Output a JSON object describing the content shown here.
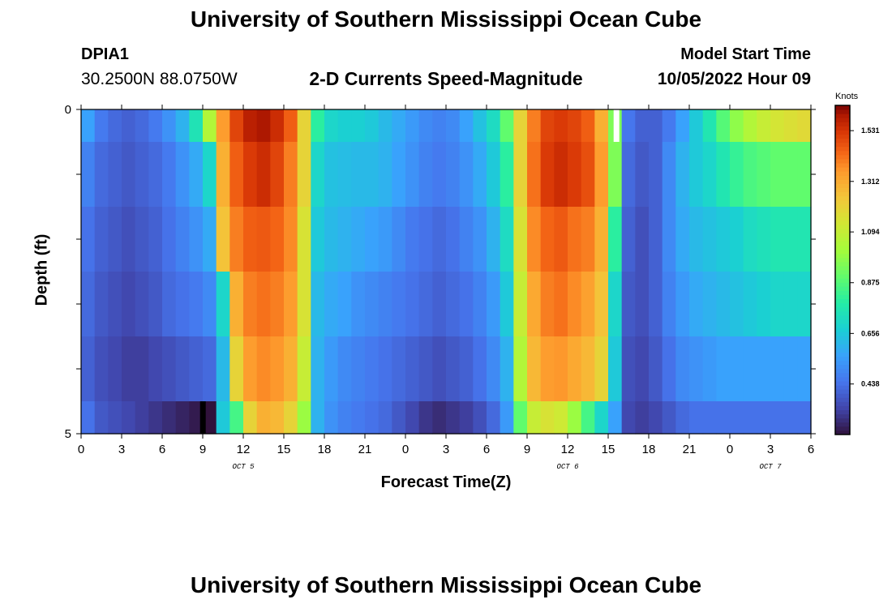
{
  "header": {
    "title": "University of Southern Mississippi Ocean Cube",
    "station": "DPIA1",
    "coordinates": "30.2500N  88.0750W",
    "model_label": "Model Start Time",
    "model_time": "10/05/2022 Hour 09"
  },
  "footer": {
    "title": "University of Southern Mississippi Ocean Cube"
  },
  "chart_data": {
    "type": "heatmap",
    "title": "2-D Currents Speed-Magnitude",
    "xlabel": "Forecast Time(Z)",
    "ylabel": "Depth (ft)",
    "colorbar_label": "Knots",
    "colorbar_ticks": [
      "1.531",
      "1.312",
      "1.094",
      "0.875",
      "0.656",
      "0.438"
    ],
    "color_range": [
      0.22,
      1.64
    ],
    "x_range_hours": [
      0,
      54
    ],
    "x_tick_labels": [
      "0",
      "3",
      "6",
      "9",
      "12",
      "15",
      "18",
      "21",
      "0",
      "3",
      "6",
      "9",
      "12",
      "15",
      "18",
      "21",
      "0",
      "3",
      "6"
    ],
    "day_labels": [
      {
        "text": "OCT 5",
        "hour": 12
      },
      {
        "text": "OCT 6",
        "hour": 36
      },
      {
        "text": "OCT 7",
        "hour": 51
      }
    ],
    "y_tick_labels": [
      {
        "text": "0",
        "depth": 0
      },
      {
        "text": "5",
        "depth": 5
      }
    ],
    "y_range_ft": [
      0,
      5
    ],
    "depths_ft": [
      0,
      1,
      2,
      3,
      4,
      5
    ],
    "hours": [
      0,
      1,
      2,
      3,
      4,
      5,
      6,
      7,
      8,
      9,
      10,
      11,
      12,
      13,
      14,
      15,
      16,
      17,
      18,
      19,
      20,
      21,
      22,
      23,
      24,
      25,
      26,
      27,
      28,
      29,
      30,
      31,
      32,
      33,
      34,
      35,
      36,
      37,
      38,
      39,
      40,
      41,
      42,
      43,
      44,
      45,
      46,
      47,
      48,
      49,
      50,
      51,
      52,
      53
    ],
    "speed_knots": [
      [
        0.56,
        0.46,
        0.42,
        0.4,
        0.42,
        0.46,
        0.52,
        0.6,
        0.75,
        1.05,
        1.35,
        1.5,
        1.58,
        1.6,
        1.55,
        1.45,
        1.2,
        0.8,
        0.7,
        0.68,
        0.68,
        0.66,
        0.62,
        0.58,
        0.54,
        0.5,
        0.48,
        0.5,
        0.56,
        0.64,
        0.72,
        0.9,
        1.2,
        1.4,
        1.5,
        1.52,
        1.5,
        1.45,
        1.3,
        0.95,
        0.45,
        0.4,
        0.4,
        0.46,
        0.56,
        0.66,
        0.76,
        0.88,
        0.98,
        1.05,
        1.1,
        1.14,
        1.16,
        1.18
      ],
      [
        0.48,
        0.42,
        0.4,
        0.38,
        0.4,
        0.42,
        0.46,
        0.52,
        0.58,
        0.7,
        1.3,
        1.45,
        1.52,
        1.55,
        1.5,
        1.4,
        1.2,
        0.7,
        0.64,
        0.63,
        0.62,
        0.62,
        0.6,
        0.56,
        0.52,
        0.48,
        0.46,
        0.48,
        0.52,
        0.58,
        0.66,
        0.8,
        1.2,
        1.42,
        1.52,
        1.55,
        1.52,
        1.48,
        1.35,
        0.95,
        0.42,
        0.38,
        0.4,
        0.5,
        0.6,
        0.66,
        0.7,
        0.76,
        0.82,
        0.86,
        0.88,
        0.9,
        0.9,
        0.9
      ],
      [
        0.44,
        0.4,
        0.38,
        0.36,
        0.38,
        0.4,
        0.44,
        0.48,
        0.52,
        0.58,
        1.25,
        1.4,
        1.45,
        1.46,
        1.44,
        1.38,
        1.15,
        0.66,
        0.62,
        0.6,
        0.58,
        0.56,
        0.54,
        0.5,
        0.46,
        0.44,
        0.42,
        0.44,
        0.48,
        0.52,
        0.6,
        0.72,
        1.15,
        1.38,
        1.44,
        1.46,
        1.42,
        1.4,
        1.3,
        0.8,
        0.4,
        0.36,
        0.4,
        0.5,
        0.58,
        0.62,
        0.64,
        0.66,
        0.68,
        0.72,
        0.74,
        0.76,
        0.76,
        0.76
      ],
      [
        0.42,
        0.38,
        0.36,
        0.34,
        0.36,
        0.38,
        0.42,
        0.44,
        0.46,
        0.5,
        0.7,
        1.3,
        1.4,
        1.42,
        1.4,
        1.35,
        1.15,
        0.62,
        0.58,
        0.56,
        0.52,
        0.5,
        0.48,
        0.46,
        0.44,
        0.42,
        0.4,
        0.42,
        0.44,
        0.48,
        0.54,
        0.66,
        1.1,
        1.32,
        1.4,
        1.42,
        1.38,
        1.34,
        1.25,
        0.7,
        0.38,
        0.36,
        0.4,
        0.48,
        0.54,
        0.58,
        0.6,
        0.62,
        0.64,
        0.66,
        0.68,
        0.7,
        0.7,
        0.7
      ],
      [
        0.4,
        0.36,
        0.34,
        0.32,
        0.32,
        0.34,
        0.36,
        0.38,
        0.4,
        0.42,
        0.62,
        1.2,
        1.35,
        1.38,
        1.36,
        1.3,
        1.1,
        0.6,
        0.54,
        0.5,
        0.48,
        0.46,
        0.44,
        0.42,
        0.4,
        0.38,
        0.36,
        0.38,
        0.4,
        0.44,
        0.5,
        0.6,
        1.05,
        1.28,
        1.35,
        1.36,
        1.32,
        1.28,
        1.2,
        0.66,
        0.36,
        0.34,
        0.38,
        0.44,
        0.5,
        0.52,
        0.54,
        0.56,
        0.56,
        0.56,
        0.56,
        0.56,
        0.56,
        0.56
      ],
      [
        0.44,
        0.38,
        0.36,
        0.34,
        0.32,
        0.3,
        0.28,
        0.26,
        0.24,
        0.22,
        0.66,
        0.85,
        1.2,
        1.3,
        1.28,
        1.2,
        1.0,
        0.6,
        0.52,
        0.48,
        0.46,
        0.44,
        0.42,
        0.38,
        0.34,
        0.3,
        0.28,
        0.3,
        0.32,
        0.36,
        0.42,
        0.54,
        0.9,
        1.1,
        1.15,
        1.12,
        1.0,
        0.85,
        0.7,
        0.56,
        0.34,
        0.32,
        0.34,
        0.38,
        0.42,
        0.44,
        0.44,
        0.44,
        0.44,
        0.44,
        0.44,
        0.44,
        0.44,
        0.44
      ]
    ]
  }
}
